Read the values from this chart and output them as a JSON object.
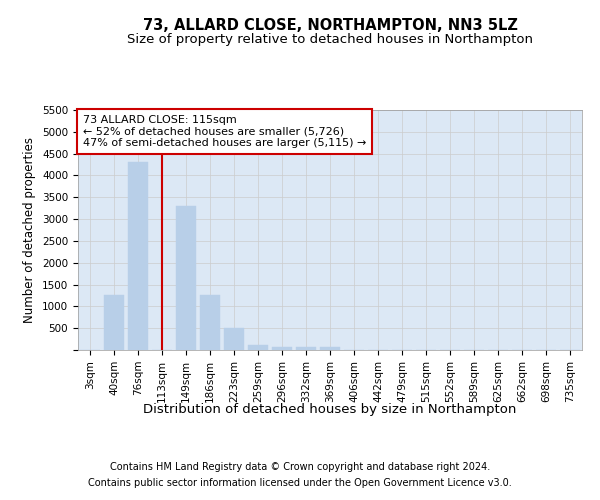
{
  "title": "73, ALLARD CLOSE, NORTHAMPTON, NN3 5LZ",
  "subtitle": "Size of property relative to detached houses in Northampton",
  "xlabel": "Distribution of detached houses by size in Northampton",
  "ylabel": "Number of detached properties",
  "footnote1": "Contains HM Land Registry data © Crown copyright and database right 2024.",
  "footnote2": "Contains public sector information licensed under the Open Government Licence v3.0.",
  "bar_labels": [
    "3sqm",
    "40sqm",
    "76sqm",
    "113sqm",
    "149sqm",
    "186sqm",
    "223sqm",
    "259sqm",
    "296sqm",
    "332sqm",
    "369sqm",
    "406sqm",
    "442sqm",
    "479sqm",
    "515sqm",
    "552sqm",
    "589sqm",
    "625sqm",
    "662sqm",
    "698sqm",
    "735sqm"
  ],
  "bar_values": [
    0,
    1250,
    4300,
    0,
    3300,
    1250,
    500,
    110,
    75,
    75,
    75,
    0,
    0,
    0,
    0,
    0,
    0,
    0,
    0,
    0,
    0
  ],
  "bar_color": "#b8cfe8",
  "bar_edgecolor": "#b8cfe8",
  "vline_index": 3,
  "vline_color": "#cc0000",
  "annotation_text": "73 ALLARD CLOSE: 115sqm\n← 52% of detached houses are smaller (5,726)\n47% of semi-detached houses are larger (5,115) →",
  "annotation_box_facecolor": "#ffffff",
  "annotation_box_edgecolor": "#cc0000",
  "ylim": [
    0,
    5500
  ],
  "yticks": [
    0,
    500,
    1000,
    1500,
    2000,
    2500,
    3000,
    3500,
    4000,
    4500,
    5000,
    5500
  ],
  "grid_color": "#cccccc",
  "plot_bg_color": "#dce8f5",
  "title_fontsize": 10.5,
  "subtitle_fontsize": 9.5,
  "xlabel_fontsize": 9.5,
  "ylabel_fontsize": 8.5,
  "tick_fontsize": 7.5,
  "annotation_fontsize": 8,
  "footnote_fontsize": 7
}
